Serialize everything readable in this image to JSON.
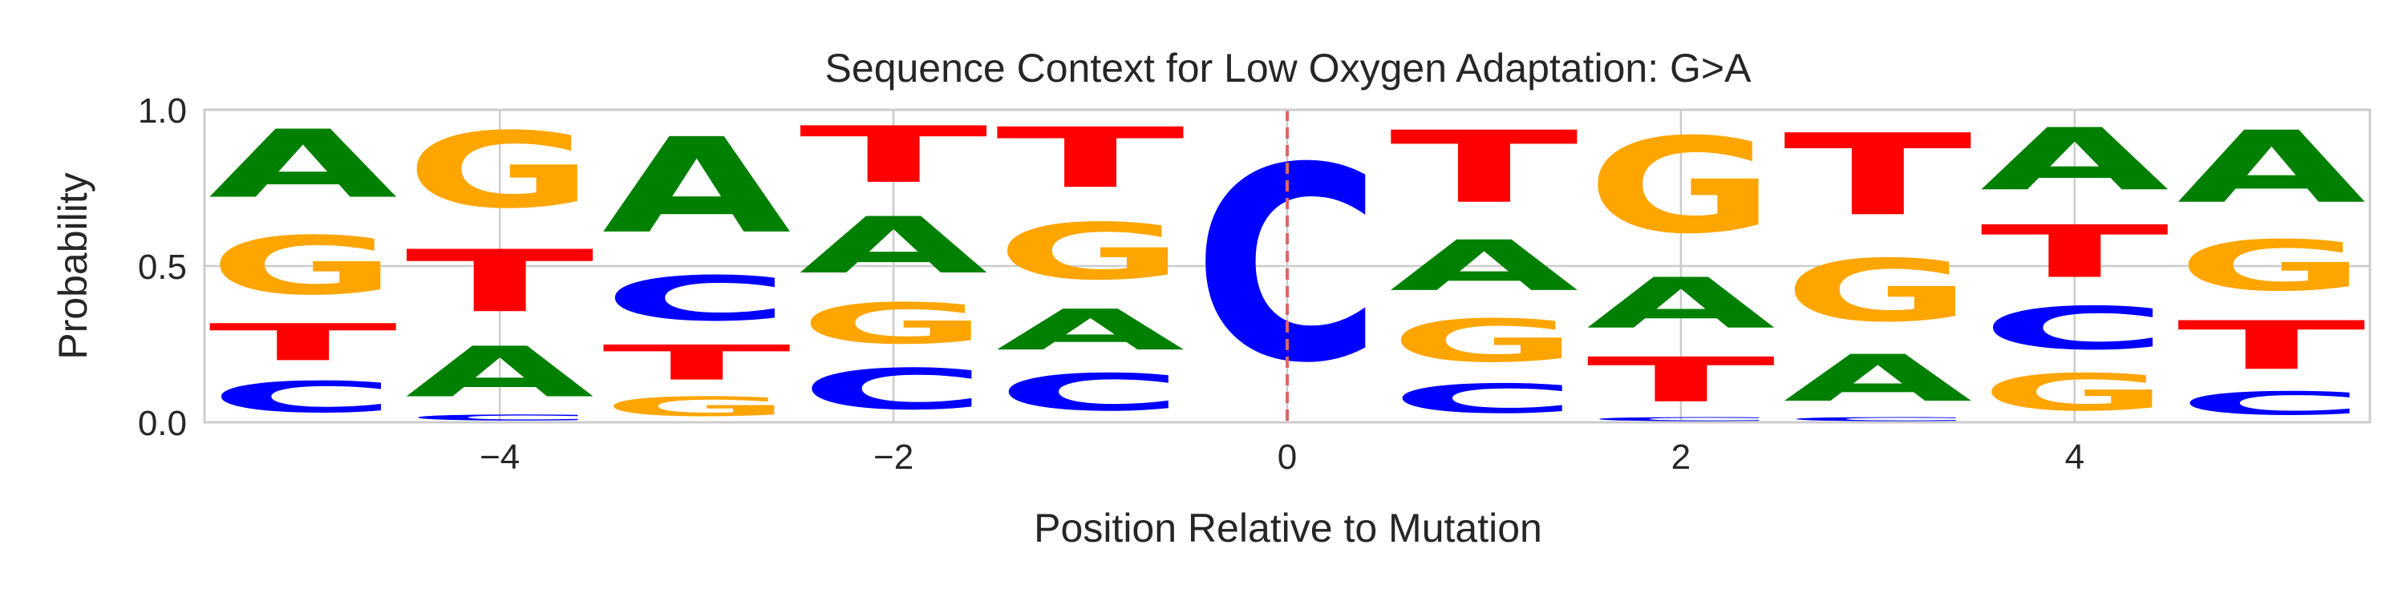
{
  "chart_data": {
    "type": "sequence-logo",
    "title": "Sequence Context for Low Oxygen Adaptation: G>A",
    "xlabel": "Position Relative to Mutation",
    "ylabel": "Probability",
    "xlim": [
      -5.5,
      5.5
    ],
    "ylim": [
      0,
      1
    ],
    "x_ticks": [
      -4,
      -2,
      0,
      2,
      4
    ],
    "x_tick_labels": [
      "−4",
      "−2",
      "0",
      "2",
      "4"
    ],
    "y_ticks": [
      0,
      0.5,
      1
    ],
    "y_tick_labels": [
      "0.0",
      "0.5",
      "1.0"
    ],
    "grid": true,
    "mutation_marker": {
      "x": 0,
      "style": "dashed",
      "color": "#e06666"
    },
    "colors": {
      "A": "#008000",
      "C": "#0000ff",
      "G": "#ffa500",
      "T": "#ff0000"
    },
    "positions": [
      {
        "x": -5,
        "A": 0.35,
        "C": 0.16,
        "G": 0.3,
        "T": 0.19
      },
      {
        "x": -4,
        "A": 0.26,
        "C": 0.03,
        "G": 0.39,
        "T": 0.32
      },
      {
        "x": -3,
        "A": 0.49,
        "C": 0.23,
        "G": 0.1,
        "T": 0.18
      },
      {
        "x": -2,
        "A": 0.29,
        "C": 0.21,
        "G": 0.21,
        "T": 0.29
      },
      {
        "x": -1,
        "A": 0.21,
        "C": 0.19,
        "G": 0.29,
        "T": 0.31
      },
      {
        "x": 0,
        "A": 0.0,
        "C": 1.0,
        "G": 0.0,
        "T": 0.0
      },
      {
        "x": 1,
        "A": 0.26,
        "C": 0.15,
        "G": 0.22,
        "T": 0.37
      },
      {
        "x": 2,
        "A": 0.26,
        "C": 0.02,
        "G": 0.49,
        "T": 0.23
      },
      {
        "x": 3,
        "A": 0.24,
        "C": 0.02,
        "G": 0.32,
        "T": 0.42
      },
      {
        "x": 4,
        "A": 0.32,
        "C": 0.22,
        "G": 0.19,
        "T": 0.27
      },
      {
        "x": 5,
        "A": 0.37,
        "C": 0.12,
        "G": 0.26,
        "T": 0.25
      }
    ]
  }
}
